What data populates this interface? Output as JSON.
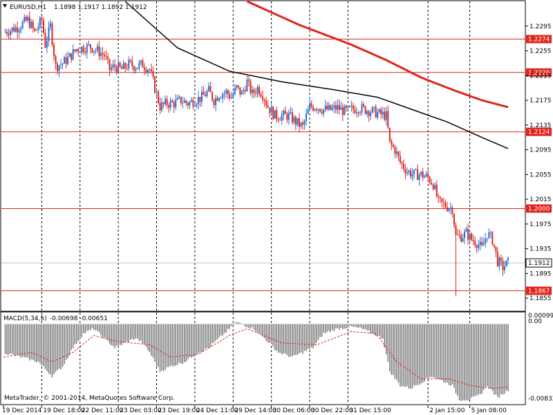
{
  "header": {
    "symbol": "EURUSD,H1",
    "ohlc": "1.1898 1.1917 1.1892 1.1912"
  },
  "indicator": {
    "title": "MACD(5,34,5)",
    "values": "-0.00698 -0.00651",
    "scale_top": "0.00099",
    "scale_zero": "0.00",
    "scale_bottom": "-0.00832"
  },
  "copyright": "MetaTrader, © 2001-2014, MetaQuotes Software Corp.",
  "chart_data": {
    "type": "candlestick",
    "symbol": "EURUSD",
    "timeframe": "H1",
    "ylim": [
      1.1835,
      1.2335
    ],
    "y_ticks": [
      "1.2295",
      "1.2255",
      "1.2215",
      "1.2175",
      "1.2135",
      "1.2095",
      "1.2055",
      "1.2015",
      "1.1975",
      "1.1935",
      "1.1895",
      "1.1855"
    ],
    "x_ticks": [
      "19 Dec 2014",
      "19 Dec 18:00",
      "22 Dec 11:00",
      "23 Dec 03:00",
      "23 Dec 19:00",
      "24 Dec 11:00",
      "29 Dec 14:00",
      "30 Dec 06:00",
      "30 Dec 22:00",
      "31 Dec 15:00",
      "2 Jan 15:00",
      "5 Jan 08:00"
    ],
    "horizontal_levels": [
      {
        "label": "1.2274",
        "value": 1.2274
      },
      {
        "label": "1.2220",
        "value": 1.222
      },
      {
        "label": "1.2124",
        "value": 1.2124
      },
      {
        "label": "1.2000",
        "value": 1.2
      },
      {
        "label": "1.1867",
        "value": 1.1867
      }
    ],
    "current_price": {
      "label": "1.1912",
      "value": 1.1912
    },
    "colors": {
      "bull": "#1e6fd9",
      "bear": "#e0231b",
      "level": "#e0231b",
      "ma_fast": "#000000",
      "ma_slow": "#e0231b",
      "macd_hist": "#808080",
      "macd_signal": "#e0231b"
    },
    "close_path": [
      [
        0,
        1.2285
      ],
      [
        8,
        1.2293
      ],
      [
        14,
        1.2305
      ],
      [
        18,
        1.2285
      ],
      [
        22,
        1.2305
      ],
      [
        24,
        1.2265
      ],
      [
        27,
        1.2295
      ],
      [
        30,
        1.223
      ],
      [
        34,
        1.2235
      ],
      [
        38,
        1.2245
      ],
      [
        42,
        1.2258
      ],
      [
        46,
        1.226
      ],
      [
        50,
        1.2262
      ],
      [
        54,
        1.2255
      ],
      [
        58,
        1.2248
      ],
      [
        61,
        1.2225
      ],
      [
        64,
        1.223
      ],
      [
        68,
        1.2225
      ],
      [
        72,
        1.2233
      ],
      [
        76,
        1.223
      ],
      [
        80,
        1.2233
      ],
      [
        84,
        1.2225
      ],
      [
        87,
        1.2195
      ],
      [
        90,
        1.2165
      ],
      [
        94,
        1.217
      ],
      [
        98,
        1.217
      ],
      [
        102,
        1.2175
      ],
      [
        106,
        1.217
      ],
      [
        110,
        1.2175
      ],
      [
        114,
        1.218
      ],
      [
        118,
        1.219
      ],
      [
        121,
        1.2175
      ],
      [
        124,
        1.2185
      ],
      [
        128,
        1.2188
      ],
      [
        131,
        1.218
      ],
      [
        134,
        1.2195
      ],
      [
        137,
        1.2185
      ],
      [
        140,
        1.2205
      ],
      [
        143,
        1.2185
      ],
      [
        146,
        1.2195
      ],
      [
        149,
        1.2185
      ],
      [
        152,
        1.2165
      ],
      [
        156,
        1.215
      ],
      [
        160,
        1.215
      ],
      [
        164,
        1.215
      ],
      [
        168,
        1.214
      ],
      [
        172,
        1.2132
      ],
      [
        176,
        1.2165
      ],
      [
        180,
        1.2165
      ],
      [
        184,
        1.216
      ],
      [
        188,
        1.216
      ],
      [
        192,
        1.2163
      ],
      [
        196,
        1.2157
      ],
      [
        200,
        1.216
      ],
      [
        204,
        1.2163
      ],
      [
        208,
        1.216
      ],
      [
        212,
        1.2157
      ],
      [
        216,
        1.2153
      ],
      [
        220,
        1.215
      ],
      [
        222,
        1.2105
      ],
      [
        225,
        1.2095
      ],
      [
        228,
        1.2075
      ],
      [
        232,
        1.206
      ],
      [
        236,
        1.2055
      ],
      [
        240,
        1.2055
      ],
      [
        244,
        1.205
      ],
      [
        247,
        1.204
      ],
      [
        250,
        1.201
      ],
      [
        254,
        1.2005
      ],
      [
        258,
        1.2
      ],
      [
        260,
        1.1955
      ],
      [
        263,
        1.1955
      ],
      [
        266,
        1.196
      ],
      [
        269,
        1.195
      ],
      [
        272,
        1.1945
      ],
      [
        275,
        1.1935
      ],
      [
        278,
        1.196
      ],
      [
        281,
        1.195
      ],
      [
        284,
        1.1915
      ],
      [
        287,
        1.1905
      ],
      [
        290,
        1.1912
      ]
    ],
    "ma_fast": [
      [
        70,
        1.2335
      ],
      [
        100,
        1.226
      ],
      [
        130,
        1.2222
      ],
      [
        160,
        1.2205
      ],
      [
        190,
        1.2192
      ],
      [
        215,
        1.218
      ],
      [
        235,
        1.216
      ],
      [
        255,
        1.214
      ],
      [
        275,
        1.2115
      ],
      [
        290,
        1.2097
      ]
    ],
    "ma_slow": [
      [
        140,
        1.2335
      ],
      [
        170,
        1.2297
      ],
      [
        200,
        1.2265
      ],
      [
        220,
        1.224
      ],
      [
        240,
        1.2212
      ],
      [
        260,
        1.219
      ],
      [
        275,
        1.2175
      ],
      [
        290,
        1.2164
      ]
    ],
    "macd_hist": [
      [
        0,
        -0.003
      ],
      [
        10,
        -0.0035
      ],
      [
        20,
        -0.004
      ],
      [
        28,
        -0.0055
      ],
      [
        34,
        -0.0045
      ],
      [
        40,
        -0.0025
      ],
      [
        46,
        -0.001
      ],
      [
        52,
        -0.0005
      ],
      [
        58,
        -0.0015
      ],
      [
        64,
        -0.0025
      ],
      [
        70,
        -0.002
      ],
      [
        76,
        -0.0015
      ],
      [
        80,
        -0.002
      ],
      [
        84,
        -0.003
      ],
      [
        90,
        -0.005
      ],
      [
        96,
        -0.0045
      ],
      [
        104,
        -0.004
      ],
      [
        112,
        -0.003
      ],
      [
        118,
        -0.0025
      ],
      [
        124,
        -0.0015
      ],
      [
        130,
        -0.0005
      ],
      [
        134,
        0.0002
      ],
      [
        138,
        -0.0001
      ],
      [
        144,
        -0.0005
      ],
      [
        150,
        -0.0015
      ],
      [
        158,
        -0.003
      ],
      [
        166,
        -0.0035
      ],
      [
        172,
        -0.003
      ],
      [
        178,
        -0.0025
      ],
      [
        184,
        -0.001
      ],
      [
        192,
        -0.0005
      ],
      [
        200,
        -0.0003
      ],
      [
        206,
        -0.0005
      ],
      [
        212,
        -0.001
      ],
      [
        218,
        -0.0015
      ],
      [
        222,
        -0.005
      ],
      [
        228,
        -0.0065
      ],
      [
        234,
        -0.0068
      ],
      [
        240,
        -0.0062
      ],
      [
        246,
        -0.0055
      ],
      [
        252,
        -0.006
      ],
      [
        258,
        -0.0065
      ],
      [
        262,
        -0.008
      ],
      [
        268,
        -0.008
      ],
      [
        274,
        -0.0075
      ],
      [
        278,
        -0.0065
      ],
      [
        284,
        -0.0078
      ],
      [
        290,
        -0.007
      ]
    ],
    "macd_signal": [
      [
        0,
        -0.0035
      ],
      [
        16,
        -0.003
      ],
      [
        28,
        -0.004
      ],
      [
        40,
        -0.003
      ],
      [
        52,
        -0.0012
      ],
      [
        64,
        -0.0018
      ],
      [
        84,
        -0.0022
      ],
      [
        96,
        -0.0035
      ],
      [
        112,
        -0.0032
      ],
      [
        130,
        -0.0012
      ],
      [
        140,
        -0.0005
      ],
      [
        160,
        -0.002
      ],
      [
        180,
        -0.0022
      ],
      [
        200,
        -0.0008
      ],
      [
        214,
        -0.001
      ],
      [
        226,
        -0.004
      ],
      [
        240,
        -0.0058
      ],
      [
        256,
        -0.0058
      ],
      [
        268,
        -0.0065
      ],
      [
        280,
        -0.0068
      ],
      [
        290,
        -0.0067
      ]
    ]
  }
}
